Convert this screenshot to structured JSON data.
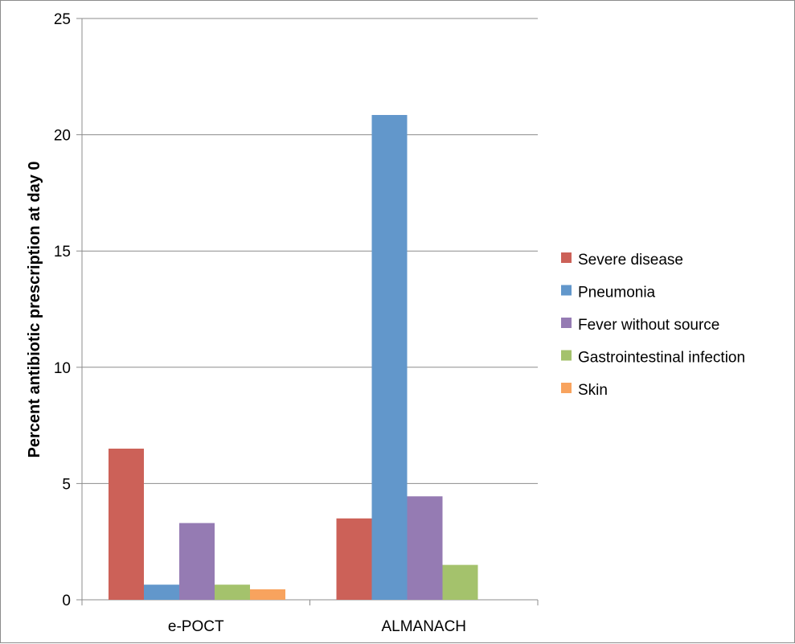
{
  "chart_data": {
    "type": "bar",
    "categories": [
      "e-POCT",
      "ALMANACH"
    ],
    "series": [
      {
        "name": "Severe disease",
        "color": "#cc6158",
        "values": [
          6.5,
          3.5
        ]
      },
      {
        "name": "Pneumonia",
        "color": "#6297cb",
        "values": [
          0.65,
          20.85
        ]
      },
      {
        "name": "Fever without source",
        "color": "#957bb3",
        "values": [
          3.3,
          4.45
        ]
      },
      {
        "name": "Gastrointestinal infection",
        "color": "#a4c26c",
        "values": [
          0.65,
          1.5
        ]
      },
      {
        "name": "Skin",
        "color": "#f8a35e",
        "values": [
          0.45,
          0
        ]
      }
    ],
    "xlabel": "",
    "ylabel": "Percent antibiotic prescription at day 0",
    "ylim": [
      0,
      25
    ],
    "yticks": [
      "0",
      "5",
      "10",
      "15",
      "20",
      "25"
    ],
    "grid": true,
    "legend_position": "right"
  }
}
